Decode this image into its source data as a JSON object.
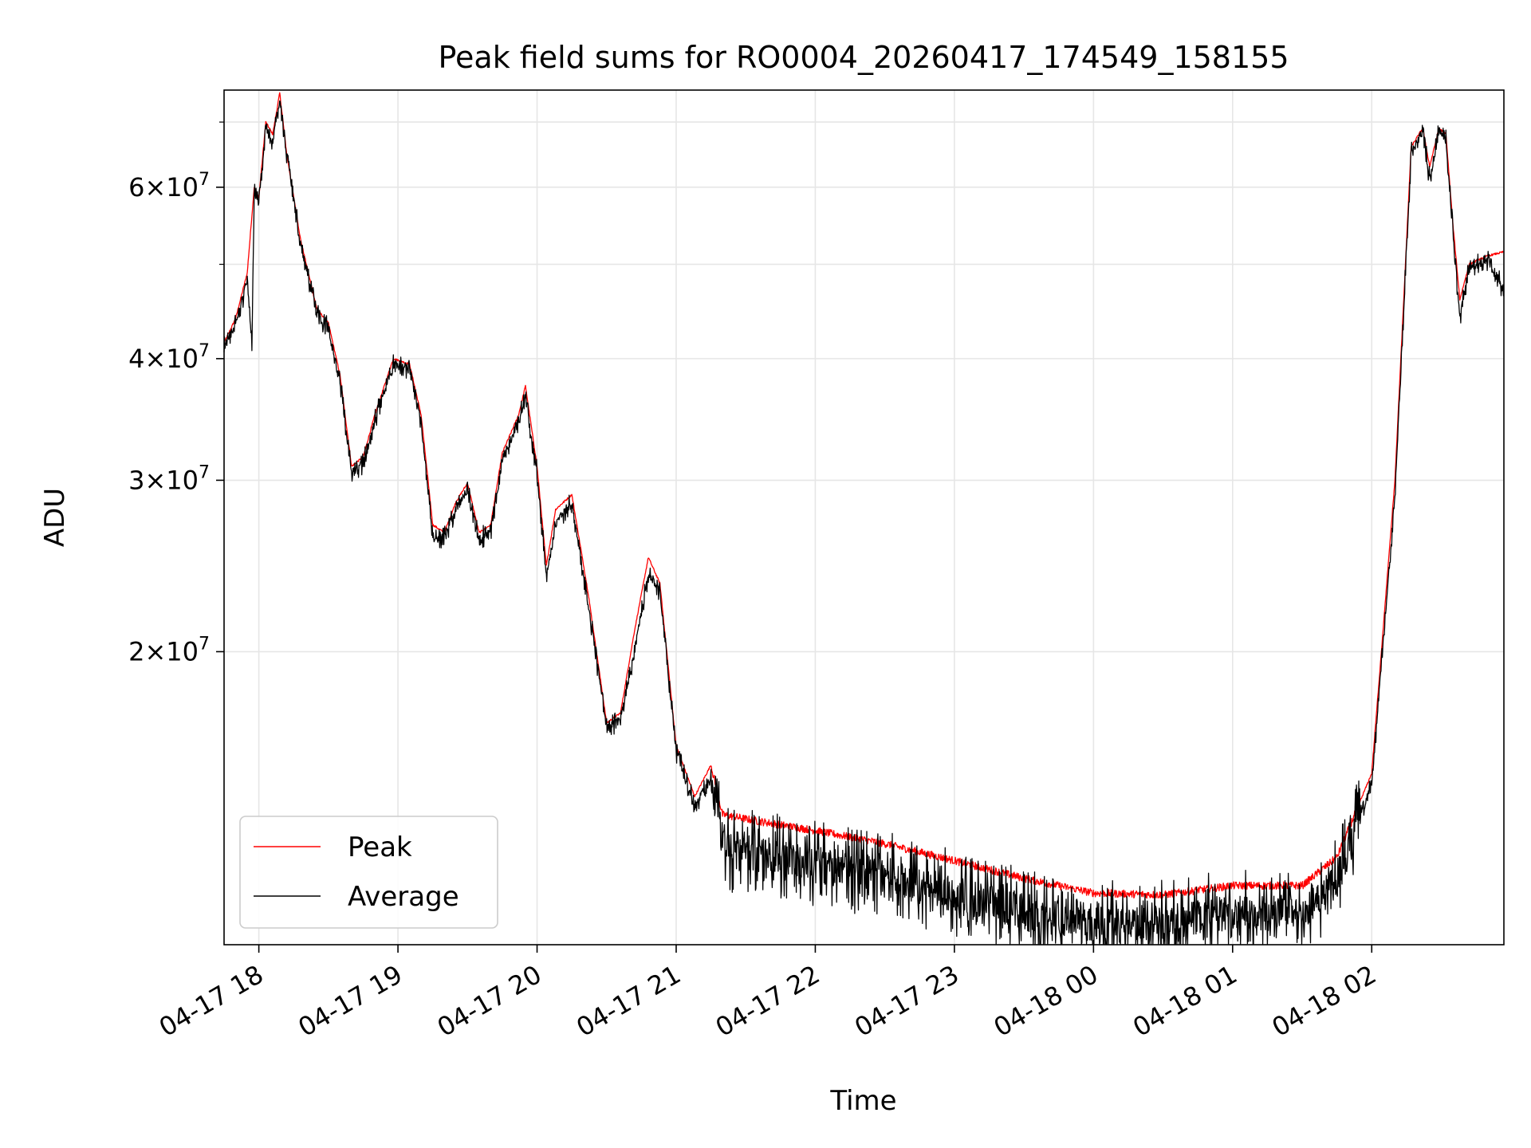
{
  "chart_data": {
    "type": "line",
    "title": "Peak field sums for RO0004_20260417_174549_158155",
    "xlabel": "Time",
    "ylabel": "ADU",
    "yscale": "log",
    "grid": true,
    "legend_position": "lower-left",
    "xlim": [
      "2026-04-17 17:45",
      "2026-04-18 02:57"
    ],
    "ylim": [
      10000000,
      75500000
    ],
    "x_ticks": [
      {
        "t": "2026-04-17 18:00",
        "label": "04-17 18"
      },
      {
        "t": "2026-04-17 19:00",
        "label": "04-17 19"
      },
      {
        "t": "2026-04-17 20:00",
        "label": "04-17 20"
      },
      {
        "t": "2026-04-17 21:00",
        "label": "04-17 21"
      },
      {
        "t": "2026-04-17 22:00",
        "label": "04-17 22"
      },
      {
        "t": "2026-04-17 23:00",
        "label": "04-17 23"
      },
      {
        "t": "2026-04-18 00:00",
        "label": "04-18 00"
      },
      {
        "t": "2026-04-18 01:00",
        "label": "04-18 01"
      },
      {
        "t": "2026-04-18 02:00",
        "label": "04-18 02"
      }
    ],
    "y_ticks": [
      {
        "value": 20000000,
        "mantissa": "2",
        "base": "10",
        "exp": "7"
      },
      {
        "value": 30000000,
        "mantissa": "3",
        "base": "10",
        "exp": "7"
      },
      {
        "value": 40000000,
        "mantissa": "4",
        "base": "10",
        "exp": "7"
      },
      {
        "value": 60000000,
        "mantissa": "6",
        "base": "10",
        "exp": "7"
      }
    ],
    "y_minor_ticks": [
      50000000,
      70000000
    ],
    "series": [
      {
        "name": "Peak",
        "color": "#ff0000",
        "noise": 0.004,
        "points": [
          [
            "2026-04-17 17:45",
            41500000
          ],
          [
            "2026-04-17 17:50",
            44000000
          ],
          [
            "2026-04-17 17:55",
            49000000
          ],
          [
            "2026-04-17 17:58",
            60000000
          ],
          [
            "2026-04-17 18:00",
            58500000
          ],
          [
            "2026-04-17 18:03",
            70000000
          ],
          [
            "2026-04-17 18:06",
            68000000
          ],
          [
            "2026-04-17 18:09",
            75000000
          ],
          [
            "2026-04-17 18:12",
            65000000
          ],
          [
            "2026-04-17 18:18",
            53000000
          ],
          [
            "2026-04-17 18:25",
            45000000
          ],
          [
            "2026-04-17 18:30",
            43500000
          ],
          [
            "2026-04-17 18:35",
            38500000
          ],
          [
            "2026-04-17 18:40",
            31000000
          ],
          [
            "2026-04-17 18:45",
            31700000
          ],
          [
            "2026-04-17 18:50",
            35000000
          ],
          [
            "2026-04-17 18:58",
            40000000
          ],
          [
            "2026-04-17 19:05",
            39500000
          ],
          [
            "2026-04-17 19:10",
            35000000
          ],
          [
            "2026-04-17 19:15",
            27000000
          ],
          [
            "2026-04-17 19:20",
            26500000
          ],
          [
            "2026-04-17 19:25",
            28500000
          ],
          [
            "2026-04-17 19:30",
            29800000
          ],
          [
            "2026-04-17 19:35",
            26500000
          ],
          [
            "2026-04-17 19:40",
            27000000
          ],
          [
            "2026-04-17 19:45",
            32000000
          ],
          [
            "2026-04-17 19:52",
            35000000
          ],
          [
            "2026-04-17 19:55",
            37500000
          ],
          [
            "2026-04-17 20:00",
            31000000
          ],
          [
            "2026-04-17 20:04",
            24500000
          ],
          [
            "2026-04-17 20:08",
            28000000
          ],
          [
            "2026-04-17 20:15",
            29000000
          ],
          [
            "2026-04-17 20:22",
            23000000
          ],
          [
            "2026-04-17 20:30",
            16900000
          ],
          [
            "2026-04-17 20:36",
            17300000
          ],
          [
            "2026-04-17 20:42",
            21000000
          ],
          [
            "2026-04-17 20:48",
            25000000
          ],
          [
            "2026-04-17 20:53",
            23500000
          ],
          [
            "2026-04-17 21:00",
            16000000
          ],
          [
            "2026-04-17 21:08",
            14200000
          ],
          [
            "2026-04-17 21:15",
            15300000
          ],
          [
            "2026-04-17 21:20",
            13600000
          ],
          [
            "2026-04-17 21:35",
            13400000
          ],
          [
            "2026-04-17 22:00",
            13100000
          ],
          [
            "2026-04-17 22:30",
            12700000
          ],
          [
            "2026-04-17 23:00",
            12200000
          ],
          [
            "2026-04-17 23:30",
            11700000
          ],
          [
            "2026-04-18 00:00",
            11300000
          ],
          [
            "2026-04-18 00:30",
            11250000
          ],
          [
            "2026-04-18 01:00",
            11500000
          ],
          [
            "2026-04-18 01:30",
            11500000
          ],
          [
            "2026-04-18 01:45",
            12300000
          ],
          [
            "2026-04-18 02:00",
            15000000
          ],
          [
            "2026-04-18 02:10",
            30000000
          ],
          [
            "2026-04-18 02:17",
            66000000
          ],
          [
            "2026-04-18 02:22",
            69000000
          ],
          [
            "2026-04-18 02:25",
            63000000
          ],
          [
            "2026-04-18 02:29",
            69000000
          ],
          [
            "2026-04-18 02:32",
            68000000
          ],
          [
            "2026-04-18 02:35",
            55000000
          ],
          [
            "2026-04-18 02:38",
            46000000
          ],
          [
            "2026-04-18 02:42",
            50000000
          ],
          [
            "2026-04-18 02:50",
            51000000
          ],
          [
            "2026-04-18 02:57",
            51500000
          ]
        ]
      },
      {
        "name": "Average",
        "color": "#000000",
        "noise": 0.045,
        "points": [
          [
            "2026-04-17 17:45",
            41000000
          ],
          [
            "2026-04-17 17:50",
            43500000
          ],
          [
            "2026-04-17 17:55",
            48000000
          ],
          [
            "2026-04-17 17:57",
            41000000
          ],
          [
            "2026-04-17 17:58",
            59000000
          ],
          [
            "2026-04-17 18:00",
            58000000
          ],
          [
            "2026-04-17 18:03",
            69500000
          ],
          [
            "2026-04-17 18:06",
            67000000
          ],
          [
            "2026-04-17 18:09",
            74500000
          ],
          [
            "2026-04-17 18:12",
            64500000
          ],
          [
            "2026-04-17 18:18",
            52500000
          ],
          [
            "2026-04-17 18:25",
            44500000
          ],
          [
            "2026-04-17 18:30",
            43000000
          ],
          [
            "2026-04-17 18:35",
            38000000
          ],
          [
            "2026-04-17 18:40",
            30500000
          ],
          [
            "2026-04-17 18:45",
            31200000
          ],
          [
            "2026-04-17 18:50",
            34500000
          ],
          [
            "2026-04-17 18:58",
            39500000
          ],
          [
            "2026-04-17 19:05",
            39000000
          ],
          [
            "2026-04-17 19:10",
            34500000
          ],
          [
            "2026-04-17 19:15",
            26000000
          ],
          [
            "2026-04-17 19:20",
            26200000
          ],
          [
            "2026-04-17 19:25",
            28000000
          ],
          [
            "2026-04-17 19:30",
            29300000
          ],
          [
            "2026-04-17 19:35",
            26100000
          ],
          [
            "2026-04-17 19:40",
            26600000
          ],
          [
            "2026-04-17 19:45",
            31500000
          ],
          [
            "2026-04-17 19:52",
            34500000
          ],
          [
            "2026-04-17 19:55",
            36500000
          ],
          [
            "2026-04-17 20:00",
            30500000
          ],
          [
            "2026-04-17 20:04",
            23800000
          ],
          [
            "2026-04-17 20:08",
            27000000
          ],
          [
            "2026-04-17 20:15",
            28500000
          ],
          [
            "2026-04-17 20:22",
            22500000
          ],
          [
            "2026-04-17 20:30",
            16700000
          ],
          [
            "2026-04-17 20:36",
            17000000
          ],
          [
            "2026-04-17 20:42",
            20000000
          ],
          [
            "2026-04-17 20:48",
            24000000
          ],
          [
            "2026-04-17 20:53",
            23000000
          ],
          [
            "2026-04-17 21:00",
            15800000
          ],
          [
            "2026-04-17 21:08",
            13900000
          ],
          [
            "2026-04-17 21:15",
            14800000
          ],
          [
            "2026-04-17 21:20",
            12600000
          ],
          [
            "2026-04-17 21:35",
            12400000
          ],
          [
            "2026-04-17 22:00",
            12100000
          ],
          [
            "2026-04-17 22:30",
            11800000
          ],
          [
            "2026-04-17 23:00",
            11300000
          ],
          [
            "2026-04-17 23:30",
            10800000
          ],
          [
            "2026-04-18 00:00",
            10500000
          ],
          [
            "2026-04-18 00:30",
            10550000
          ],
          [
            "2026-04-18 01:00",
            10800000
          ],
          [
            "2026-04-18 01:30",
            10800000
          ],
          [
            "2026-04-18 01:45",
            11600000
          ],
          [
            "2026-04-18 02:00",
            14600000
          ],
          [
            "2026-04-18 02:10",
            29000000
          ],
          [
            "2026-04-18 02:17",
            65000000
          ],
          [
            "2026-04-18 02:22",
            68500000
          ],
          [
            "2026-04-18 02:25",
            61000000
          ],
          [
            "2026-04-18 02:29",
            68500000
          ],
          [
            "2026-04-18 02:32",
            67000000
          ],
          [
            "2026-04-18 02:35",
            54000000
          ],
          [
            "2026-04-18 02:38",
            44000000
          ],
          [
            "2026-04-18 02:42",
            49500000
          ],
          [
            "2026-04-18 02:50",
            50500000
          ],
          [
            "2026-04-18 02:57",
            47000000
          ]
        ]
      }
    ]
  }
}
